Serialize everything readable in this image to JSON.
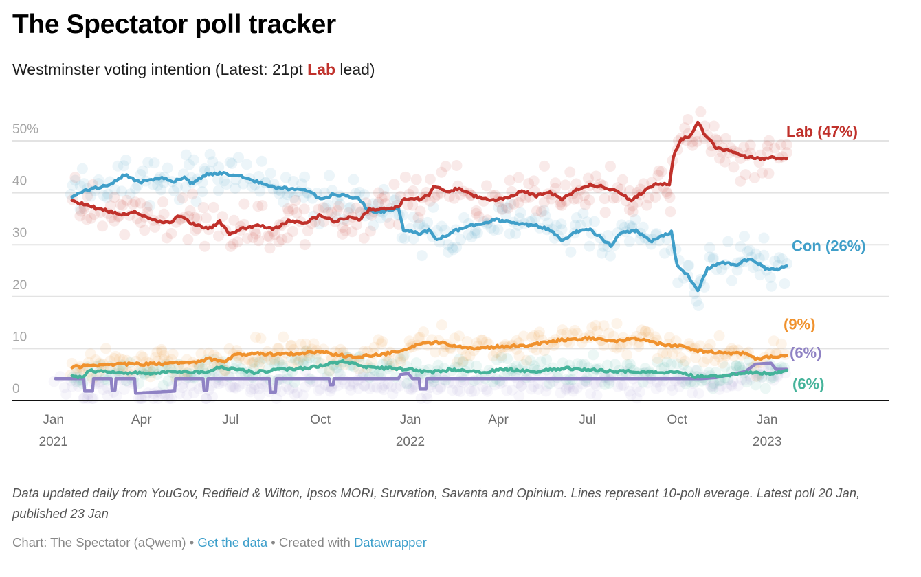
{
  "header": {
    "title": "The Spectator poll tracker",
    "subtitle_pre": "Westminster voting intention (Latest: 21pt ",
    "subtitle_highlight": "Lab",
    "subtitle_post": " lead)"
  },
  "footer": {
    "notes": "Data updated daily from YouGov, Redfield & Wilton, Ipsos MORI, Survation, Savanta and Opinium. Lines represent 10-poll average. Latest poll 20 Jan, published 23 Jan",
    "byline_pre": "Chart: The Spectator (aQwem) • ",
    "get_data_link": "Get the data",
    "byline_mid": " • Created with ",
    "datawrapper_link": "Datawrapper"
  },
  "chart_data": {
    "type": "line",
    "title": "The Spectator poll tracker",
    "subtitle": "Westminster voting intention (Latest: 21pt Lab lead)",
    "xlabel": "",
    "ylabel": "",
    "grid": true,
    "xlim": [
      "2020-11-20",
      "2023-05-06"
    ],
    "ylim": [
      0,
      50
    ],
    "yticks": [
      {
        "value": 0,
        "label": "0"
      },
      {
        "value": 10,
        "label": "10"
      },
      {
        "value": 20,
        "label": "20"
      },
      {
        "value": 30,
        "label": "30"
      },
      {
        "value": 40,
        "label": "40"
      },
      {
        "value": 50,
        "label": "50%"
      }
    ],
    "xticks": [
      {
        "date": "2021-01-01",
        "label": "Jan",
        "label2": "2021"
      },
      {
        "date": "2021-04-01",
        "label": "Apr",
        "label2": ""
      },
      {
        "date": "2021-07-01",
        "label": "Jul",
        "label2": ""
      },
      {
        "date": "2021-10-01",
        "label": "Oct",
        "label2": ""
      },
      {
        "date": "2022-01-01",
        "label": "Jan",
        "label2": "2022"
      },
      {
        "date": "2022-04-01",
        "label": "Apr",
        "label2": ""
      },
      {
        "date": "2022-07-01",
        "label": "Jul",
        "label2": ""
      },
      {
        "date": "2022-10-01",
        "label": "Oct",
        "label2": ""
      },
      {
        "date": "2023-01-01",
        "label": "Jan",
        "label2": "2023"
      }
    ],
    "series": [
      {
        "name": "Lab",
        "label": "Lab (47%)",
        "color": "#c0312b",
        "latest": 47,
        "dot_spread": 3.2,
        "points": [
          [
            "2021-01-20",
            38.5
          ],
          [
            "2021-02-05",
            37.5
          ],
          [
            "2021-02-25",
            36.5
          ],
          [
            "2021-03-10",
            35.8
          ],
          [
            "2021-03-25",
            36.2
          ],
          [
            "2021-04-10",
            34.8
          ],
          [
            "2021-04-30",
            34.2
          ],
          [
            "2021-05-10",
            35.6
          ],
          [
            "2021-05-25",
            33.8
          ],
          [
            "2021-06-10",
            33.2
          ],
          [
            "2021-06-20",
            34.4
          ],
          [
            "2021-06-30",
            32.0
          ],
          [
            "2021-07-15",
            33.2
          ],
          [
            "2021-07-30",
            33.8
          ],
          [
            "2021-08-15",
            33.0
          ],
          [
            "2021-08-30",
            34.6
          ],
          [
            "2021-09-15",
            34.2
          ],
          [
            "2021-09-30",
            35.6
          ],
          [
            "2021-10-15",
            34.6
          ],
          [
            "2021-10-30",
            35.2
          ],
          [
            "2021-11-10",
            34.8
          ],
          [
            "2021-11-20",
            36.8
          ],
          [
            "2021-12-05",
            37.0
          ],
          [
            "2021-12-20",
            37.2
          ],
          [
            "2021-12-24",
            38.6
          ],
          [
            "2022-01-10",
            38.8
          ],
          [
            "2022-01-20",
            39.6
          ],
          [
            "2022-01-25",
            41.2
          ],
          [
            "2022-02-10",
            40.2
          ],
          [
            "2022-02-20",
            41.0
          ],
          [
            "2022-03-05",
            39.6
          ],
          [
            "2022-03-25",
            38.4
          ],
          [
            "2022-04-10",
            39.0
          ],
          [
            "2022-04-25",
            40.4
          ],
          [
            "2022-05-10",
            39.4
          ],
          [
            "2022-05-25",
            40.0
          ],
          [
            "2022-06-05",
            38.6
          ],
          [
            "2022-06-20",
            40.6
          ],
          [
            "2022-07-05",
            41.6
          ],
          [
            "2022-07-20",
            41.0
          ],
          [
            "2022-08-01",
            40.4
          ],
          [
            "2022-08-15",
            38.4
          ],
          [
            "2022-08-30",
            40.6
          ],
          [
            "2022-09-10",
            41.8
          ],
          [
            "2022-09-23",
            41.4
          ],
          [
            "2022-09-27",
            47.0
          ],
          [
            "2022-10-05",
            50.4
          ],
          [
            "2022-10-14",
            50.8
          ],
          [
            "2022-10-22",
            53.5
          ],
          [
            "2022-10-30",
            51.0
          ],
          [
            "2022-11-10",
            48.6
          ],
          [
            "2022-11-25",
            48.0
          ],
          [
            "2022-12-10",
            47.0
          ],
          [
            "2022-12-25",
            46.6
          ],
          [
            "2023-01-10",
            46.8
          ],
          [
            "2023-01-21",
            46.8
          ]
        ]
      },
      {
        "name": "Con",
        "label": "Con (26%)",
        "color": "#409fc9",
        "latest": 26,
        "dot_spread": 3.2,
        "points": [
          [
            "2021-01-20",
            39.2
          ],
          [
            "2021-02-05",
            40.6
          ],
          [
            "2021-02-25",
            41.4
          ],
          [
            "2021-03-15",
            43.4
          ],
          [
            "2021-03-30",
            42.0
          ],
          [
            "2021-04-20",
            42.8
          ],
          [
            "2021-05-05",
            42.2
          ],
          [
            "2021-05-15",
            43.0
          ],
          [
            "2021-05-22",
            41.8
          ],
          [
            "2021-06-05",
            43.4
          ],
          [
            "2021-06-20",
            43.8
          ],
          [
            "2021-07-10",
            43.2
          ],
          [
            "2021-07-30",
            42.0
          ],
          [
            "2021-08-15",
            41.0
          ],
          [
            "2021-08-30",
            40.8
          ],
          [
            "2021-09-15",
            40.4
          ],
          [
            "2021-09-25",
            39.6
          ],
          [
            "2021-10-01",
            38.6
          ],
          [
            "2021-10-15",
            39.8
          ],
          [
            "2021-10-30",
            39.2
          ],
          [
            "2021-11-10",
            38.8
          ],
          [
            "2021-11-20",
            36.4
          ],
          [
            "2021-12-05",
            36.4
          ],
          [
            "2021-12-20",
            37.0
          ],
          [
            "2021-12-25",
            32.8
          ],
          [
            "2022-01-10",
            32.2
          ],
          [
            "2022-01-20",
            32.8
          ],
          [
            "2022-01-28",
            30.8
          ],
          [
            "2022-02-15",
            32.6
          ],
          [
            "2022-03-10",
            34.0
          ],
          [
            "2022-03-30",
            34.8
          ],
          [
            "2022-04-20",
            34.0
          ],
          [
            "2022-05-10",
            33.6
          ],
          [
            "2022-05-25",
            32.8
          ],
          [
            "2022-06-05",
            30.8
          ],
          [
            "2022-06-20",
            32.6
          ],
          [
            "2022-07-05",
            32.8
          ],
          [
            "2022-07-25",
            29.8
          ],
          [
            "2022-08-05",
            32.4
          ],
          [
            "2022-08-20",
            32.6
          ],
          [
            "2022-09-05",
            30.6
          ],
          [
            "2022-09-15",
            31.6
          ],
          [
            "2022-09-25",
            32.4
          ],
          [
            "2022-10-01",
            25.8
          ],
          [
            "2022-10-12",
            24.2
          ],
          [
            "2022-10-22",
            21.0
          ],
          [
            "2022-11-01",
            25.4
          ],
          [
            "2022-11-15",
            26.6
          ],
          [
            "2022-12-01",
            26.2
          ],
          [
            "2022-12-15",
            27.4
          ],
          [
            "2022-12-30",
            25.4
          ],
          [
            "2023-01-12",
            25.2
          ],
          [
            "2023-01-21",
            26.0
          ]
        ]
      },
      {
        "name": "Other (orange)",
        "label": "(9%)",
        "color": "#f0922e",
        "latest": 9,
        "dot_spread": 2.2,
        "points": [
          [
            "2021-01-20",
            6.4
          ],
          [
            "2021-03-01",
            7.0
          ],
          [
            "2021-04-15",
            7.0
          ],
          [
            "2021-05-10",
            7.2
          ],
          [
            "2021-05-25",
            7.4
          ],
          [
            "2021-06-10",
            8.0
          ],
          [
            "2021-06-25",
            7.4
          ],
          [
            "2021-07-05",
            8.8
          ],
          [
            "2021-08-01",
            9.0
          ],
          [
            "2021-09-01",
            9.0
          ],
          [
            "2021-10-01",
            9.4
          ],
          [
            "2021-11-01",
            8.4
          ],
          [
            "2021-12-01",
            8.8
          ],
          [
            "2021-12-20",
            9.4
          ],
          [
            "2022-01-10",
            10.8
          ],
          [
            "2022-02-01",
            11.2
          ],
          [
            "2022-03-01",
            10.0
          ],
          [
            "2022-04-01",
            10.4
          ],
          [
            "2022-05-01",
            10.6
          ],
          [
            "2022-06-01",
            11.6
          ],
          [
            "2022-07-01",
            12.0
          ],
          [
            "2022-08-01",
            11.4
          ],
          [
            "2022-08-20",
            12.0
          ],
          [
            "2022-09-15",
            10.8
          ],
          [
            "2022-10-05",
            10.4
          ],
          [
            "2022-10-20",
            9.6
          ],
          [
            "2022-11-15",
            9.2
          ],
          [
            "2022-12-10",
            9.0
          ],
          [
            "2022-12-20",
            8.0
          ],
          [
            "2023-01-21",
            8.8
          ]
        ]
      },
      {
        "name": "Other (purple)",
        "label": "(6%)",
        "color": "#8f82c4",
        "latest": 6,
        "dot_spread": 1.6,
        "points": [
          [
            "2021-01-03",
            4.2
          ],
          [
            "2021-02-01",
            4.2
          ],
          [
            "2021-02-02",
            1.8
          ],
          [
            "2021-02-10",
            1.8
          ],
          [
            "2021-02-11",
            4.2
          ],
          [
            "2021-03-01",
            4.2
          ],
          [
            "2021-03-02",
            2.0
          ],
          [
            "2021-03-05",
            2.0
          ],
          [
            "2021-03-06",
            4.2
          ],
          [
            "2021-03-25",
            4.2
          ],
          [
            "2021-03-26",
            1.4
          ],
          [
            "2021-05-05",
            1.8
          ],
          [
            "2021-05-06",
            4.2
          ],
          [
            "2021-06-03",
            4.2
          ],
          [
            "2021-06-04",
            2.0
          ],
          [
            "2021-06-07",
            2.0
          ],
          [
            "2021-06-08",
            4.2
          ],
          [
            "2021-08-10",
            4.2
          ],
          [
            "2021-08-11",
            1.6
          ],
          [
            "2021-08-16",
            1.6
          ],
          [
            "2021-08-17",
            4.2
          ],
          [
            "2021-10-10",
            4.2
          ],
          [
            "2021-10-11",
            3.0
          ],
          [
            "2021-10-14",
            3.0
          ],
          [
            "2021-10-15",
            4.2
          ],
          [
            "2021-12-20",
            4.2
          ],
          [
            "2021-12-22",
            5.0
          ],
          [
            "2021-12-30",
            5.2
          ],
          [
            "2022-01-03",
            4.2
          ],
          [
            "2022-01-10",
            4.2
          ],
          [
            "2022-01-11",
            2.2
          ],
          [
            "2022-01-17",
            2.2
          ],
          [
            "2022-01-18",
            4.2
          ],
          [
            "2022-10-25",
            4.2
          ],
          [
            "2022-11-10",
            4.4
          ],
          [
            "2022-11-25",
            5.0
          ],
          [
            "2022-12-10",
            5.6
          ],
          [
            "2022-12-20",
            7.0
          ],
          [
            "2023-01-05",
            7.2
          ],
          [
            "2023-01-10",
            6.0
          ],
          [
            "2023-01-21",
            6.0
          ]
        ]
      },
      {
        "name": "Other (green)",
        "label": "(6%)",
        "color": "#45b39a",
        "latest": 6,
        "dot_spread": 2.0,
        "points": [
          [
            "2021-01-20",
            4.6
          ],
          [
            "2021-02-01",
            4.4
          ],
          [
            "2021-02-05",
            5.8
          ],
          [
            "2021-03-10",
            5.4
          ],
          [
            "2021-04-10",
            5.2
          ],
          [
            "2021-05-10",
            5.6
          ],
          [
            "2021-06-05",
            5.4
          ],
          [
            "2021-06-20",
            6.4
          ],
          [
            "2021-07-10",
            6.0
          ],
          [
            "2021-07-25",
            5.4
          ],
          [
            "2021-08-20",
            6.0
          ],
          [
            "2021-09-15",
            6.2
          ],
          [
            "2021-10-10",
            7.0
          ],
          [
            "2021-10-25",
            7.6
          ],
          [
            "2021-11-15",
            6.4
          ],
          [
            "2021-12-10",
            6.2
          ],
          [
            "2022-01-01",
            6.0
          ],
          [
            "2022-01-20",
            5.4
          ],
          [
            "2022-02-15",
            6.0
          ],
          [
            "2022-03-10",
            5.4
          ],
          [
            "2022-04-10",
            6.0
          ],
          [
            "2022-05-10",
            5.6
          ],
          [
            "2022-06-10",
            6.2
          ],
          [
            "2022-07-10",
            5.8
          ],
          [
            "2022-08-10",
            5.6
          ],
          [
            "2022-09-10",
            5.4
          ],
          [
            "2022-10-01",
            5.6
          ],
          [
            "2022-10-20",
            4.6
          ],
          [
            "2022-11-10",
            4.8
          ],
          [
            "2022-12-01",
            5.0
          ],
          [
            "2022-12-15",
            5.4
          ],
          [
            "2023-01-05",
            5.2
          ],
          [
            "2023-01-21",
            5.8
          ]
        ]
      }
    ]
  }
}
